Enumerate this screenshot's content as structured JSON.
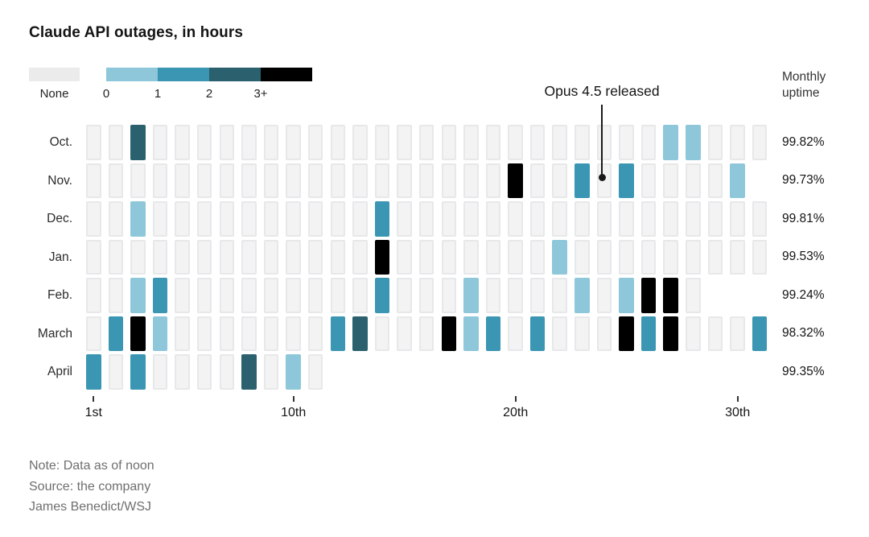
{
  "title": "Claude API outages, in hours",
  "legend": {
    "none_label": "None",
    "none_color": "#f3f3f4",
    "buckets": [
      {
        "label": "0",
        "color": "#8ec7da"
      },
      {
        "label": "1",
        "color": "#3a96b3"
      },
      {
        "label": "2",
        "color": "#2b616e"
      },
      {
        "label": "3+",
        "color": "#000000"
      }
    ]
  },
  "uptime_header": {
    "line1": "Monthly",
    "line2": "uptime"
  },
  "annotation": {
    "text": "Opus 4.5 released",
    "month": "Nov.",
    "day": 24
  },
  "axis": {
    "ticks": [
      {
        "day": 1,
        "label": "1st"
      },
      {
        "day": 10,
        "label": "10th"
      },
      {
        "day": 20,
        "label": "20th"
      },
      {
        "day": 30,
        "label": "30th"
      }
    ]
  },
  "chart_data": {
    "type": "heatmap",
    "title": "Claude API outages, in hours",
    "value_units": "hours of outage per day",
    "value_buckets": [
      "None",
      "0",
      "1",
      "2",
      "3+"
    ],
    "rows": [
      {
        "month": "Oct.",
        "days": 31,
        "uptime": "99.82%",
        "cells": {
          "3": "2",
          "27": "0",
          "28": "0"
        }
      },
      {
        "month": "Nov.",
        "days": 30,
        "uptime": "99.73%",
        "cells": {
          "20": "3+",
          "23": "1",
          "25": "1",
          "30": "0"
        }
      },
      {
        "month": "Dec.",
        "days": 31,
        "uptime": "99.81%",
        "cells": {
          "3": "0",
          "14": "1"
        }
      },
      {
        "month": "Jan.",
        "days": 31,
        "uptime": "99.53%",
        "cells": {
          "14": "3+",
          "22": "0"
        }
      },
      {
        "month": "Feb.",
        "days": 28,
        "uptime": "99.24%",
        "cells": {
          "3": "0",
          "4": "1",
          "14": "1",
          "18": "0",
          "23": "0",
          "25": "0",
          "26": "3+",
          "27": "3+"
        }
      },
      {
        "month": "March",
        "days": 31,
        "uptime": "98.32%",
        "cells": {
          "2": "1",
          "3": "3+",
          "4": "0",
          "12": "1",
          "13": "2",
          "17": "3+",
          "18": "0",
          "19": "1",
          "21": "1",
          "25": "3+",
          "26": "1",
          "27": "3+",
          "31": "1"
        }
      },
      {
        "month": "April",
        "days": 11,
        "uptime": "99.35%",
        "cells": {
          "1": "1",
          "3": "1",
          "8": "2",
          "10": "0"
        }
      }
    ]
  },
  "notes": [
    "Note: Data as of noon",
    "Source: the company",
    "James Benedict/WSJ"
  ]
}
